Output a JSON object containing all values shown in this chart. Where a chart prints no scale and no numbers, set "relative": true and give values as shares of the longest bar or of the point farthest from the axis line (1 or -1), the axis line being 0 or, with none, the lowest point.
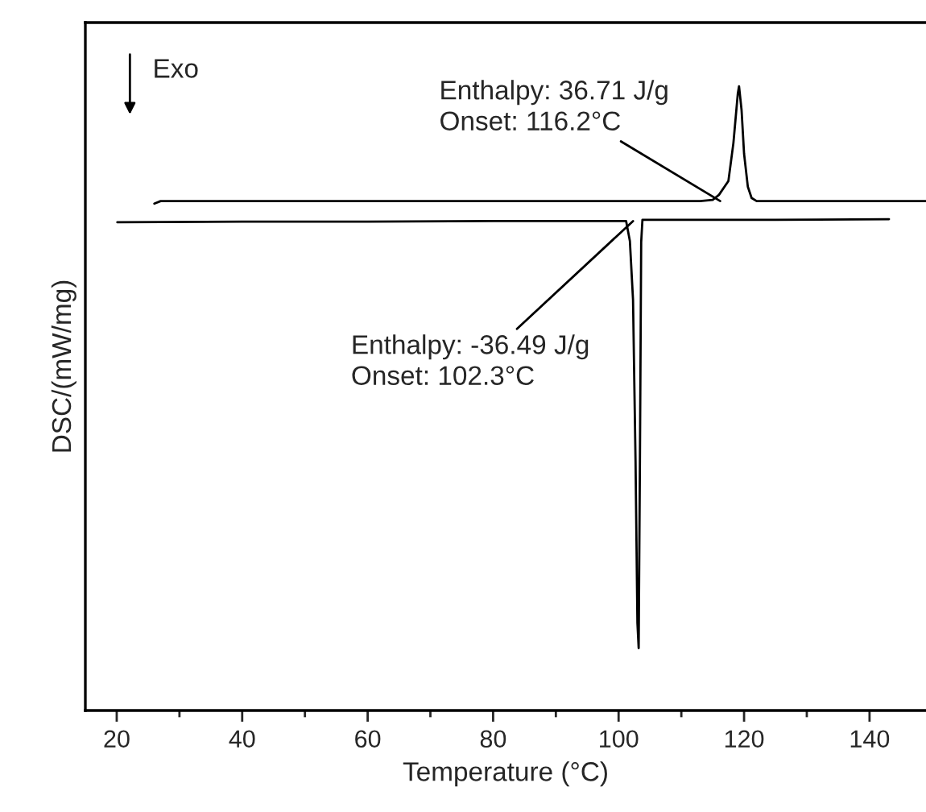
{
  "chart_data": {
    "type": "line",
    "xlabel": "Temperature (°C)",
    "ylabel": "DSC/(mW/mg)",
    "relative": true,
    "xlim": [
      15,
      149
    ],
    "xticks": [
      20,
      {
        "value": 30,
        "label": null
      },
      40,
      {
        "value": 50,
        "label": null
      },
      60,
      {
        "value": 70,
        "label": null
      },
      80,
      {
        "value": 90,
        "label": null
      },
      100,
      {
        "value": 110,
        "label": null
      },
      120,
      {
        "value": 130,
        "label": null
      },
      140
    ],
    "series": [
      {
        "color": "#000000",
        "x": [
          26,
          27,
          30,
          40,
          60,
          80,
          100,
          110,
          113,
          115,
          116,
          117.5,
          118.3,
          119,
          119.2,
          119.6,
          120,
          120.6,
          121.2,
          122,
          125,
          135,
          149
        ],
        "values": [
          0.812,
          0.816,
          0.816,
          0.816,
          0.816,
          0.816,
          0.816,
          0.816,
          0.816,
          0.818,
          0.826,
          0.848,
          0.909,
          0.988,
          1.0,
          0.962,
          0.892,
          0.839,
          0.821,
          0.816,
          0.816,
          0.816,
          0.816
        ]
      },
      {
        "color": "#000000",
        "x": [
          20.1,
          40,
          60,
          80,
          100,
          101.2,
          101.8,
          102.3,
          102.7,
          103.0,
          103.2,
          103.4,
          103.6,
          103.8,
          110,
          125,
          143.1
        ],
        "values": [
          0.782,
          0.783,
          0.783,
          0.784,
          0.784,
          0.784,
          0.752,
          0.658,
          0.4,
          0.14,
          0.1,
          0.4,
          0.75,
          0.786,
          0.786,
          0.786,
          0.787
        ]
      }
    ],
    "annotations": [
      "Exo",
      {
        "text": "Enthalpy: 36.71 J/g\nOnset: 116.2°C",
        "x": 116.2,
        "y": 0.816
      },
      {
        "text": "Enthalpy: -36.49 J/g\nOnset: 102.3°C",
        "x": 102.3,
        "y": 0.784
      }
    ],
    "grid": false,
    "legend": false
  }
}
